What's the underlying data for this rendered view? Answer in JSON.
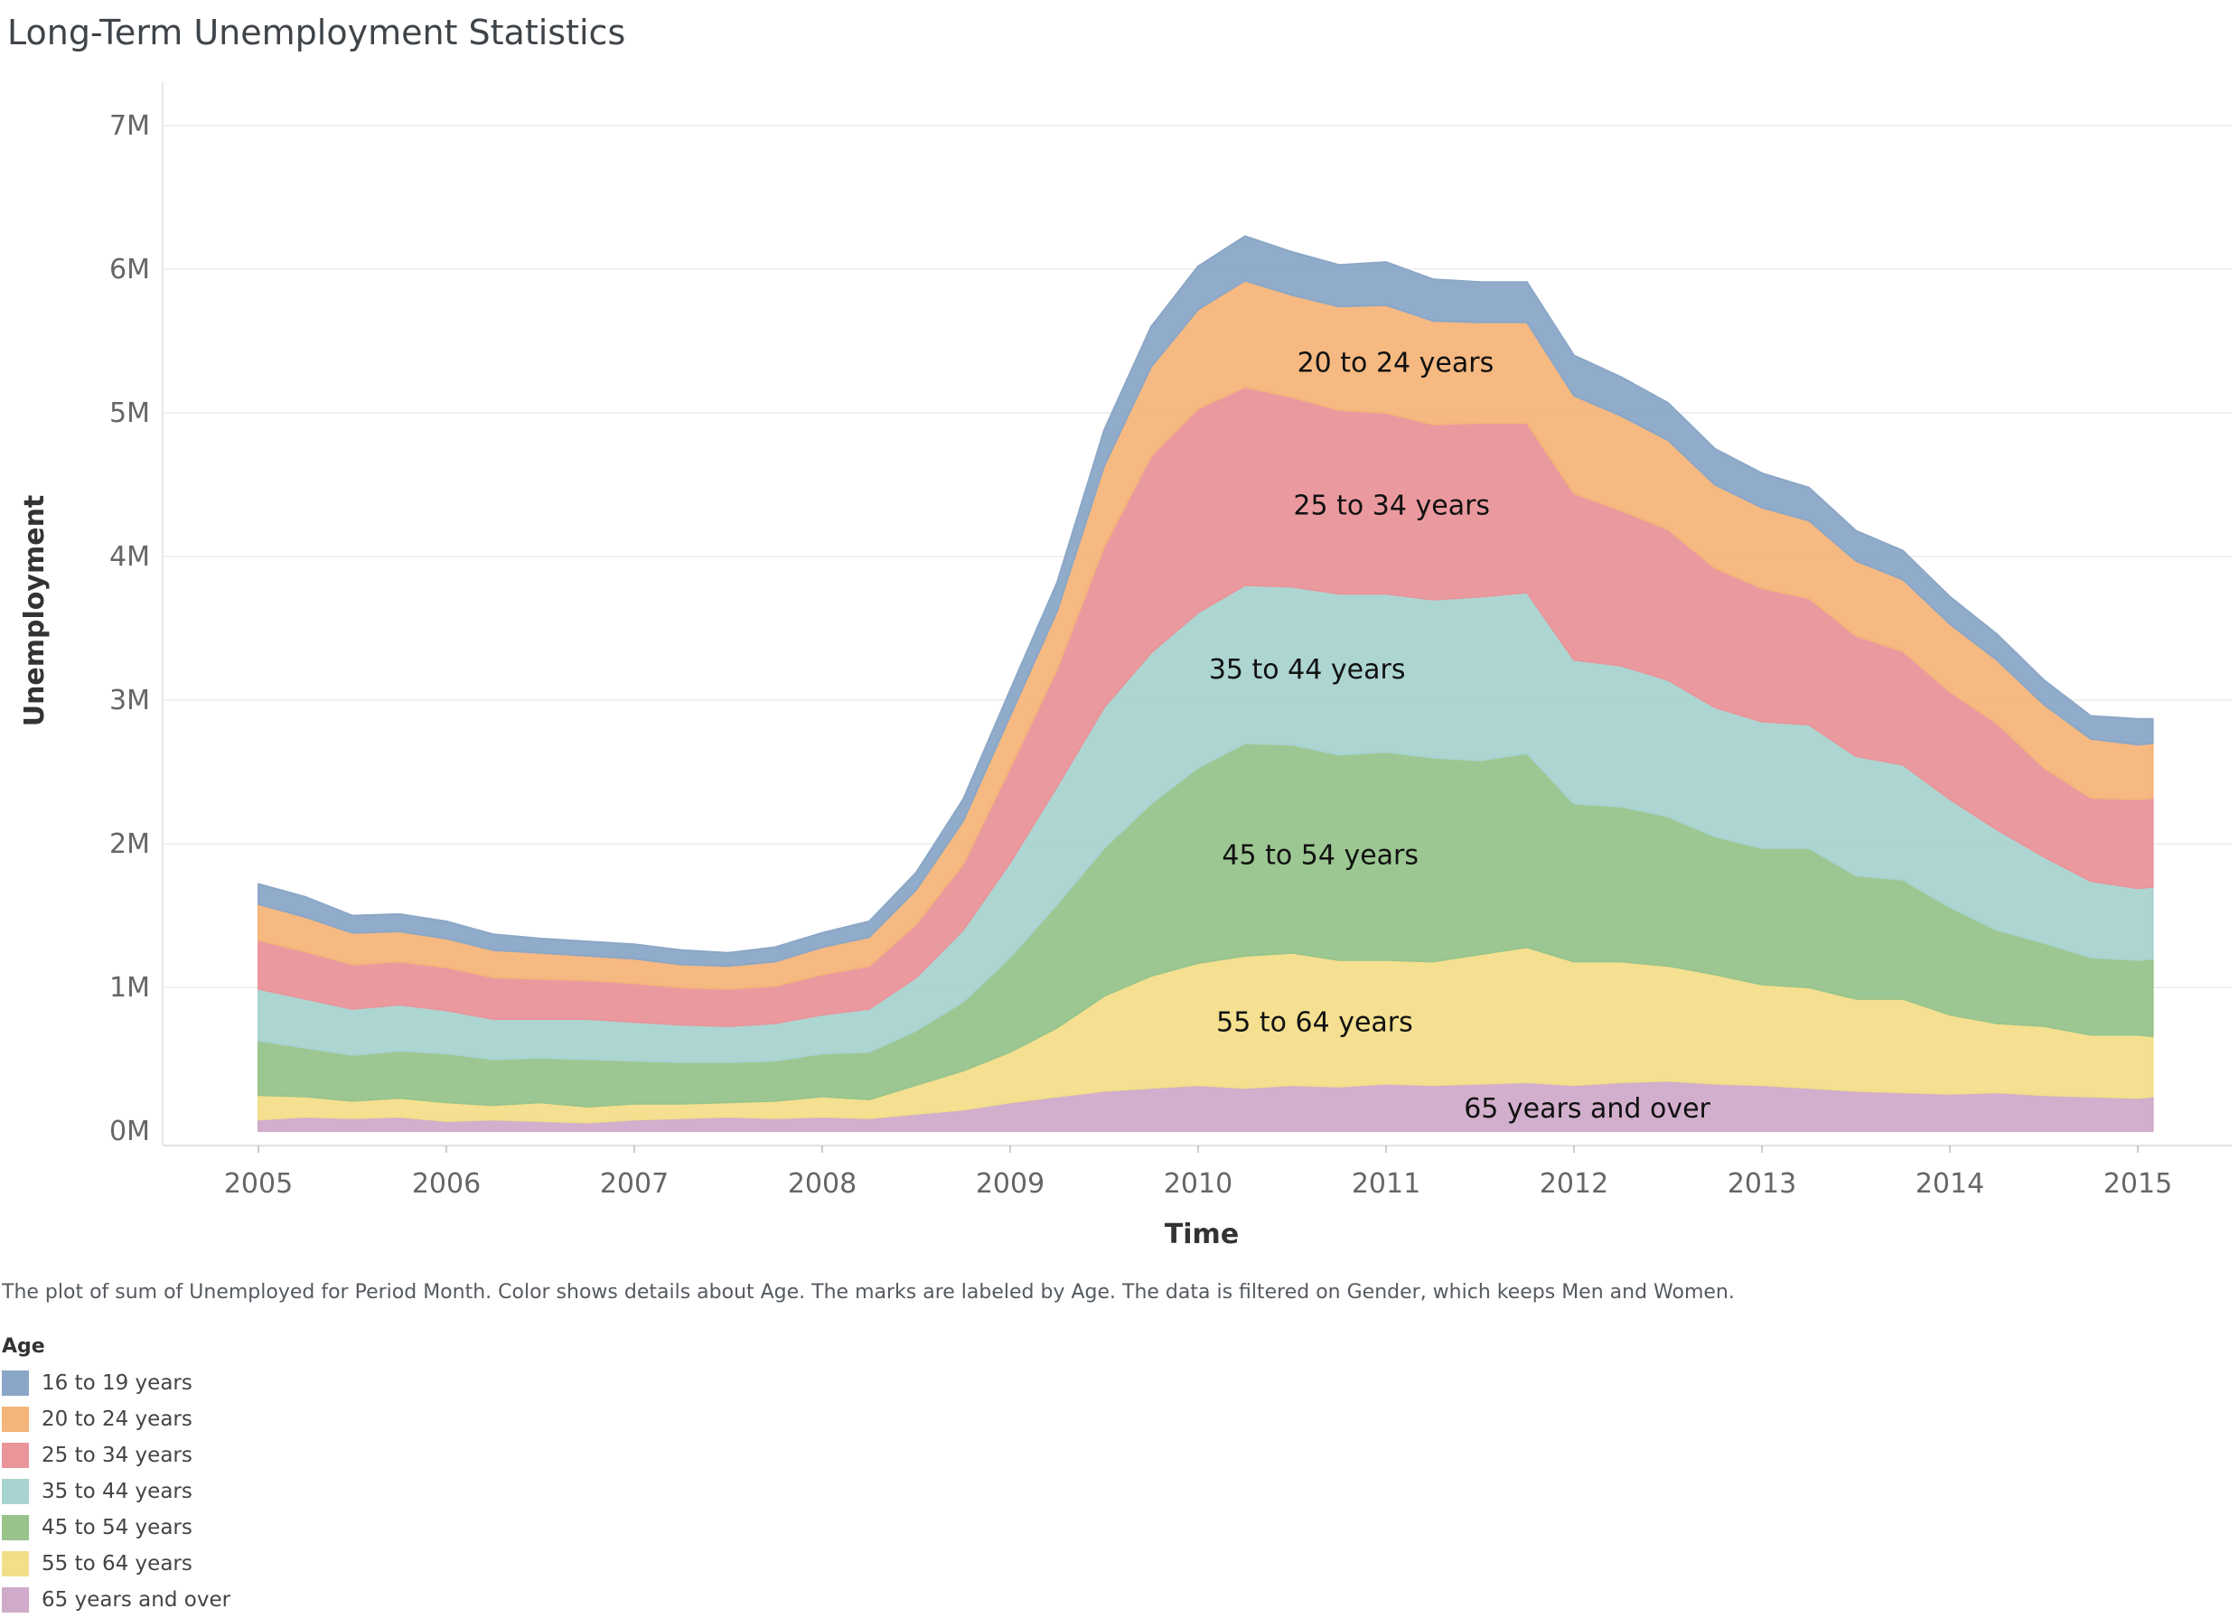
{
  "title": "Long-Term Unemployment Statistics",
  "caption": "The plot of sum of Unemployed for Period Month.  Color shows details about Age.  The marks are labeled by Age. The data is filtered on Gender, which keeps Men and Women.",
  "legend": {
    "title": "Age",
    "items": [
      {
        "label": "16 to 19 years",
        "color": "#8ba7c7"
      },
      {
        "label": "20 to 24 years",
        "color": "#f4b57a"
      },
      {
        "label": "25 to 34 years",
        "color": "#e9959a"
      },
      {
        "label": "35 to 44 years",
        "color": "#a9d3d0"
      },
      {
        "label": "45 to 54 years",
        "color": "#98c48c"
      },
      {
        "label": "55 to 64 years",
        "color": "#f3de8a"
      },
      {
        "label": "65 years and over",
        "color": "#d0abc9"
      }
    ]
  },
  "chart_data": {
    "type": "area",
    "stacked": true,
    "xlabel": "Time",
    "ylabel": "Unemployment",
    "x_ticks": [
      "2005",
      "2006",
      "2007",
      "2008",
      "2009",
      "2010",
      "2011",
      "2012",
      "2013",
      "2014",
      "2015"
    ],
    "y_ticks": [
      "0M",
      "1M",
      "2M",
      "3M",
      "4M",
      "5M",
      "6M",
      "7M"
    ],
    "ylim": [
      0,
      7.5
    ],
    "xlim": [
      2004.55,
      2015.3
    ],
    "units": "millions",
    "grid": true,
    "legend_position": "bottom-left",
    "x": [
      2005.0,
      2005.25,
      2005.5,
      2005.75,
      2006.0,
      2006.25,
      2006.5,
      2006.75,
      2007.0,
      2007.25,
      2007.5,
      2007.75,
      2008.0,
      2008.25,
      2008.5,
      2008.75,
      2009.0,
      2009.25,
      2009.5,
      2009.75,
      2010.0,
      2010.25,
      2010.5,
      2010.75,
      2011.0,
      2011.25,
      2011.5,
      2011.75,
      2012.0,
      2012.25,
      2012.5,
      2012.75,
      2013.0,
      2013.25,
      2013.5,
      2013.75,
      2014.0,
      2014.25,
      2014.5,
      2014.75,
      2015.0,
      2015.08
    ],
    "series": [
      {
        "name": "65 years and over",
        "values": [
          0.08,
          0.1,
          0.09,
          0.1,
          0.07,
          0.08,
          0.07,
          0.06,
          0.08,
          0.09,
          0.1,
          0.09,
          0.1,
          0.09,
          0.12,
          0.15,
          0.2,
          0.24,
          0.28,
          0.3,
          0.32,
          0.3,
          0.32,
          0.31,
          0.33,
          0.32,
          0.33,
          0.34,
          0.32,
          0.34,
          0.35,
          0.33,
          0.32,
          0.3,
          0.28,
          0.27,
          0.26,
          0.27,
          0.25,
          0.24,
          0.23,
          0.24
        ]
      },
      {
        "name": "55 to 64 years",
        "values": [
          0.17,
          0.14,
          0.12,
          0.13,
          0.13,
          0.1,
          0.13,
          0.11,
          0.11,
          0.1,
          0.1,
          0.12,
          0.14,
          0.13,
          0.2,
          0.27,
          0.35,
          0.48,
          0.66,
          0.78,
          0.85,
          0.92,
          0.92,
          0.88,
          0.86,
          0.86,
          0.9,
          0.94,
          0.86,
          0.84,
          0.8,
          0.76,
          0.7,
          0.7,
          0.64,
          0.65,
          0.55,
          0.48,
          0.48,
          0.43,
          0.44,
          0.42
        ]
      },
      {
        "name": "45 to 54 years",
        "values": [
          0.38,
          0.34,
          0.32,
          0.33,
          0.34,
          0.32,
          0.31,
          0.33,
          0.3,
          0.29,
          0.28,
          0.28,
          0.3,
          0.33,
          0.38,
          0.48,
          0.66,
          0.86,
          1.03,
          1.2,
          1.36,
          1.48,
          1.45,
          1.43,
          1.45,
          1.42,
          1.35,
          1.35,
          1.1,
          1.08,
          1.04,
          0.96,
          0.95,
          0.97,
          0.86,
          0.83,
          0.75,
          0.65,
          0.58,
          0.54,
          0.52,
          0.54
        ]
      },
      {
        "name": "35 to 44 years",
        "values": [
          0.36,
          0.34,
          0.32,
          0.32,
          0.3,
          0.28,
          0.27,
          0.28,
          0.27,
          0.26,
          0.25,
          0.26,
          0.27,
          0.3,
          0.37,
          0.5,
          0.66,
          0.82,
          0.98,
          1.05,
          1.08,
          1.1,
          1.1,
          1.12,
          1.1,
          1.1,
          1.14,
          1.12,
          1.0,
          0.98,
          0.95,
          0.9,
          0.88,
          0.86,
          0.83,
          0.8,
          0.75,
          0.7,
          0.6,
          0.53,
          0.5,
          0.5
        ]
      },
      {
        "name": "25 to 34 years",
        "values": [
          0.34,
          0.33,
          0.31,
          0.3,
          0.3,
          0.29,
          0.28,
          0.27,
          0.27,
          0.26,
          0.26,
          0.26,
          0.28,
          0.3,
          0.37,
          0.46,
          0.66,
          0.82,
          1.12,
          1.37,
          1.42,
          1.38,
          1.32,
          1.28,
          1.26,
          1.22,
          1.21,
          1.18,
          1.16,
          1.08,
          1.05,
          0.97,
          0.93,
          0.88,
          0.84,
          0.79,
          0.75,
          0.74,
          0.62,
          0.58,
          0.62,
          0.62
        ]
      },
      {
        "name": "20 to 24 years",
        "values": [
          0.25,
          0.24,
          0.22,
          0.21,
          0.2,
          0.19,
          0.18,
          0.17,
          0.17,
          0.16,
          0.16,
          0.17,
          0.19,
          0.2,
          0.24,
          0.3,
          0.36,
          0.4,
          0.56,
          0.62,
          0.69,
          0.74,
          0.71,
          0.72,
          0.75,
          0.72,
          0.7,
          0.7,
          0.68,
          0.66,
          0.62,
          0.58,
          0.56,
          0.54,
          0.52,
          0.5,
          0.47,
          0.44,
          0.44,
          0.41,
          0.38,
          0.38
        ]
      },
      {
        "name": "16 to 19 years",
        "values": [
          0.14,
          0.14,
          0.12,
          0.12,
          0.12,
          0.11,
          0.1,
          0.1,
          0.1,
          0.1,
          0.09,
          0.1,
          0.1,
          0.11,
          0.12,
          0.15,
          0.18,
          0.2,
          0.25,
          0.28,
          0.3,
          0.31,
          0.3,
          0.29,
          0.3,
          0.29,
          0.28,
          0.28,
          0.28,
          0.27,
          0.26,
          0.25,
          0.24,
          0.23,
          0.21,
          0.2,
          0.19,
          0.18,
          0.17,
          0.16,
          0.18,
          0.17
        ]
      }
    ],
    "annotations": [
      {
        "text": "20 to 24 years",
        "series": "20 to 24 years",
        "x": 2011.05
      },
      {
        "text": "25 to 34 years",
        "series": "25 to 34 years",
        "x": 2011.03
      },
      {
        "text": "35 to 44 years",
        "series": "35 to 44 years",
        "x": 2010.58
      },
      {
        "text": "45 to 54 years",
        "series": "45 to 54 years",
        "x": 2010.65
      },
      {
        "text": "55 to 64 years",
        "series": "55 to 64 years",
        "x": 2010.62
      },
      {
        "text": "65 years and over",
        "series": "65 years and over",
        "x": 2012.07
      }
    ]
  }
}
